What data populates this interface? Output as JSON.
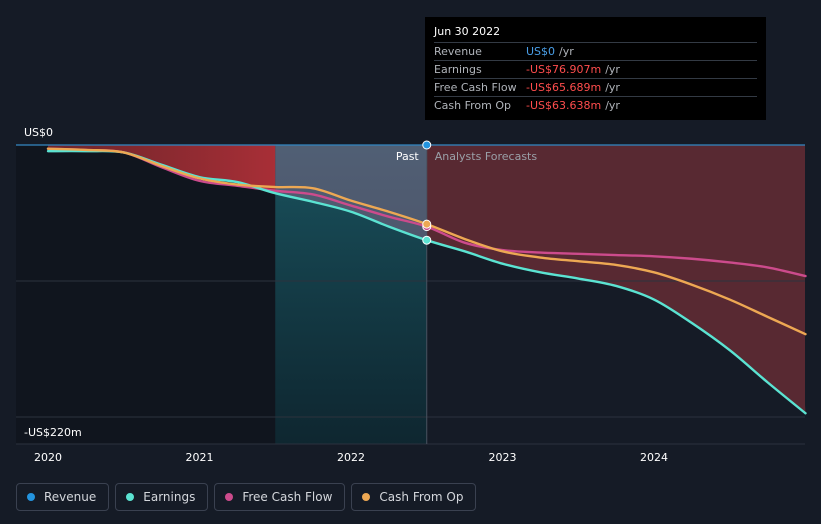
{
  "tooltip": {
    "date": "Jun 30 2022",
    "rows": [
      {
        "label": "Revenue",
        "value": "US$0",
        "unit": "/yr",
        "color": "#4a9fe8"
      },
      {
        "label": "Earnings",
        "value": "-US$76.907m",
        "unit": "/yr",
        "color": "#ff4d4d"
      },
      {
        "label": "Free Cash Flow",
        "value": "-US$65.689m",
        "unit": "/yr",
        "color": "#ff4d4d"
      },
      {
        "label": "Cash From Op",
        "value": "-US$63.638m",
        "unit": "/yr",
        "color": "#ff4d4d"
      }
    ]
  },
  "legend": [
    {
      "label": "Revenue",
      "color": "#2394df"
    },
    {
      "label": "Earnings",
      "color": "#5be3d2"
    },
    {
      "label": "Free Cash Flow",
      "color": "#cc4b8c"
    },
    {
      "label": "Cash From Op",
      "color": "#eda853"
    }
  ],
  "chart_data": {
    "type": "line",
    "y_top_label": "US$0",
    "y_bottom_label": "-US$220m",
    "ylim": [
      -220,
      0
    ],
    "xlim": [
      2019.9,
      2025.0
    ],
    "x_ticks": [
      {
        "value": 2020,
        "label": "2020"
      },
      {
        "value": 2021,
        "label": "2021"
      },
      {
        "value": 2022,
        "label": "2022"
      },
      {
        "value": 2023,
        "label": "2023"
      },
      {
        "value": 2024,
        "label": "2024"
      }
    ],
    "divider_x": 2022.5,
    "past_label": "Past",
    "forecast_label": "Analysts Forecasts",
    "series": [
      {
        "name": "Revenue",
        "color": "#2394df",
        "x": [
          2020.0,
          2020.5,
          2021.0,
          2021.5,
          2022.0,
          2022.5,
          2023.0,
          2023.5,
          2024.0,
          2024.5,
          2025.0
        ],
        "y": [
          0,
          0,
          0,
          0,
          0,
          0,
          0,
          0,
          0,
          0,
          0
        ]
      },
      {
        "name": "Earnings",
        "color": "#5be3d2",
        "x": [
          2020.0,
          2020.25,
          2020.5,
          2020.75,
          2021.0,
          2021.25,
          2021.5,
          2021.75,
          2022.0,
          2022.25,
          2022.5,
          2022.75,
          2023.0,
          2023.25,
          2023.5,
          2023.75,
          2024.0,
          2024.25,
          2024.5,
          2024.75,
          2025.0
        ],
        "y": [
          -5,
          -5,
          -6,
          -16,
          -26,
          -30,
          -39,
          -46,
          -54,
          -66,
          -77,
          -86,
          -96,
          -103,
          -108,
          -114,
          -125,
          -144,
          -166,
          -192,
          -217
        ]
      },
      {
        "name": "Free Cash Flow",
        "color": "#cc4b8c",
        "x": [
          2020.0,
          2020.25,
          2020.5,
          2020.75,
          2021.0,
          2021.25,
          2021.5,
          2021.75,
          2022.0,
          2022.25,
          2022.5,
          2022.75,
          2023.0,
          2023.25,
          2023.5,
          2023.75,
          2024.0,
          2024.25,
          2024.5,
          2024.75,
          2025.0
        ],
        "y": [
          -3,
          -4,
          -6,
          -18,
          -29,
          -33,
          -37,
          -40,
          -49,
          -58,
          -66,
          -79,
          -85,
          -87,
          -88,
          -89,
          -90,
          -92,
          -95,
          -99,
          -106
        ]
      },
      {
        "name": "Cash From Op",
        "color": "#eda853",
        "x": [
          2020.0,
          2020.25,
          2020.5,
          2020.75,
          2021.0,
          2021.25,
          2021.5,
          2021.75,
          2022.0,
          2022.25,
          2022.5,
          2022.75,
          2023.0,
          2023.25,
          2023.5,
          2023.75,
          2024.0,
          2024.25,
          2024.5,
          2024.75,
          2025.0
        ],
        "y": [
          -3,
          -4,
          -6,
          -17,
          -27,
          -32,
          -34,
          -35,
          -45,
          -54,
          -64,
          -76,
          -86,
          -91,
          -94,
          -97,
          -103,
          -113,
          -125,
          -139,
          -153
        ]
      }
    ]
  }
}
